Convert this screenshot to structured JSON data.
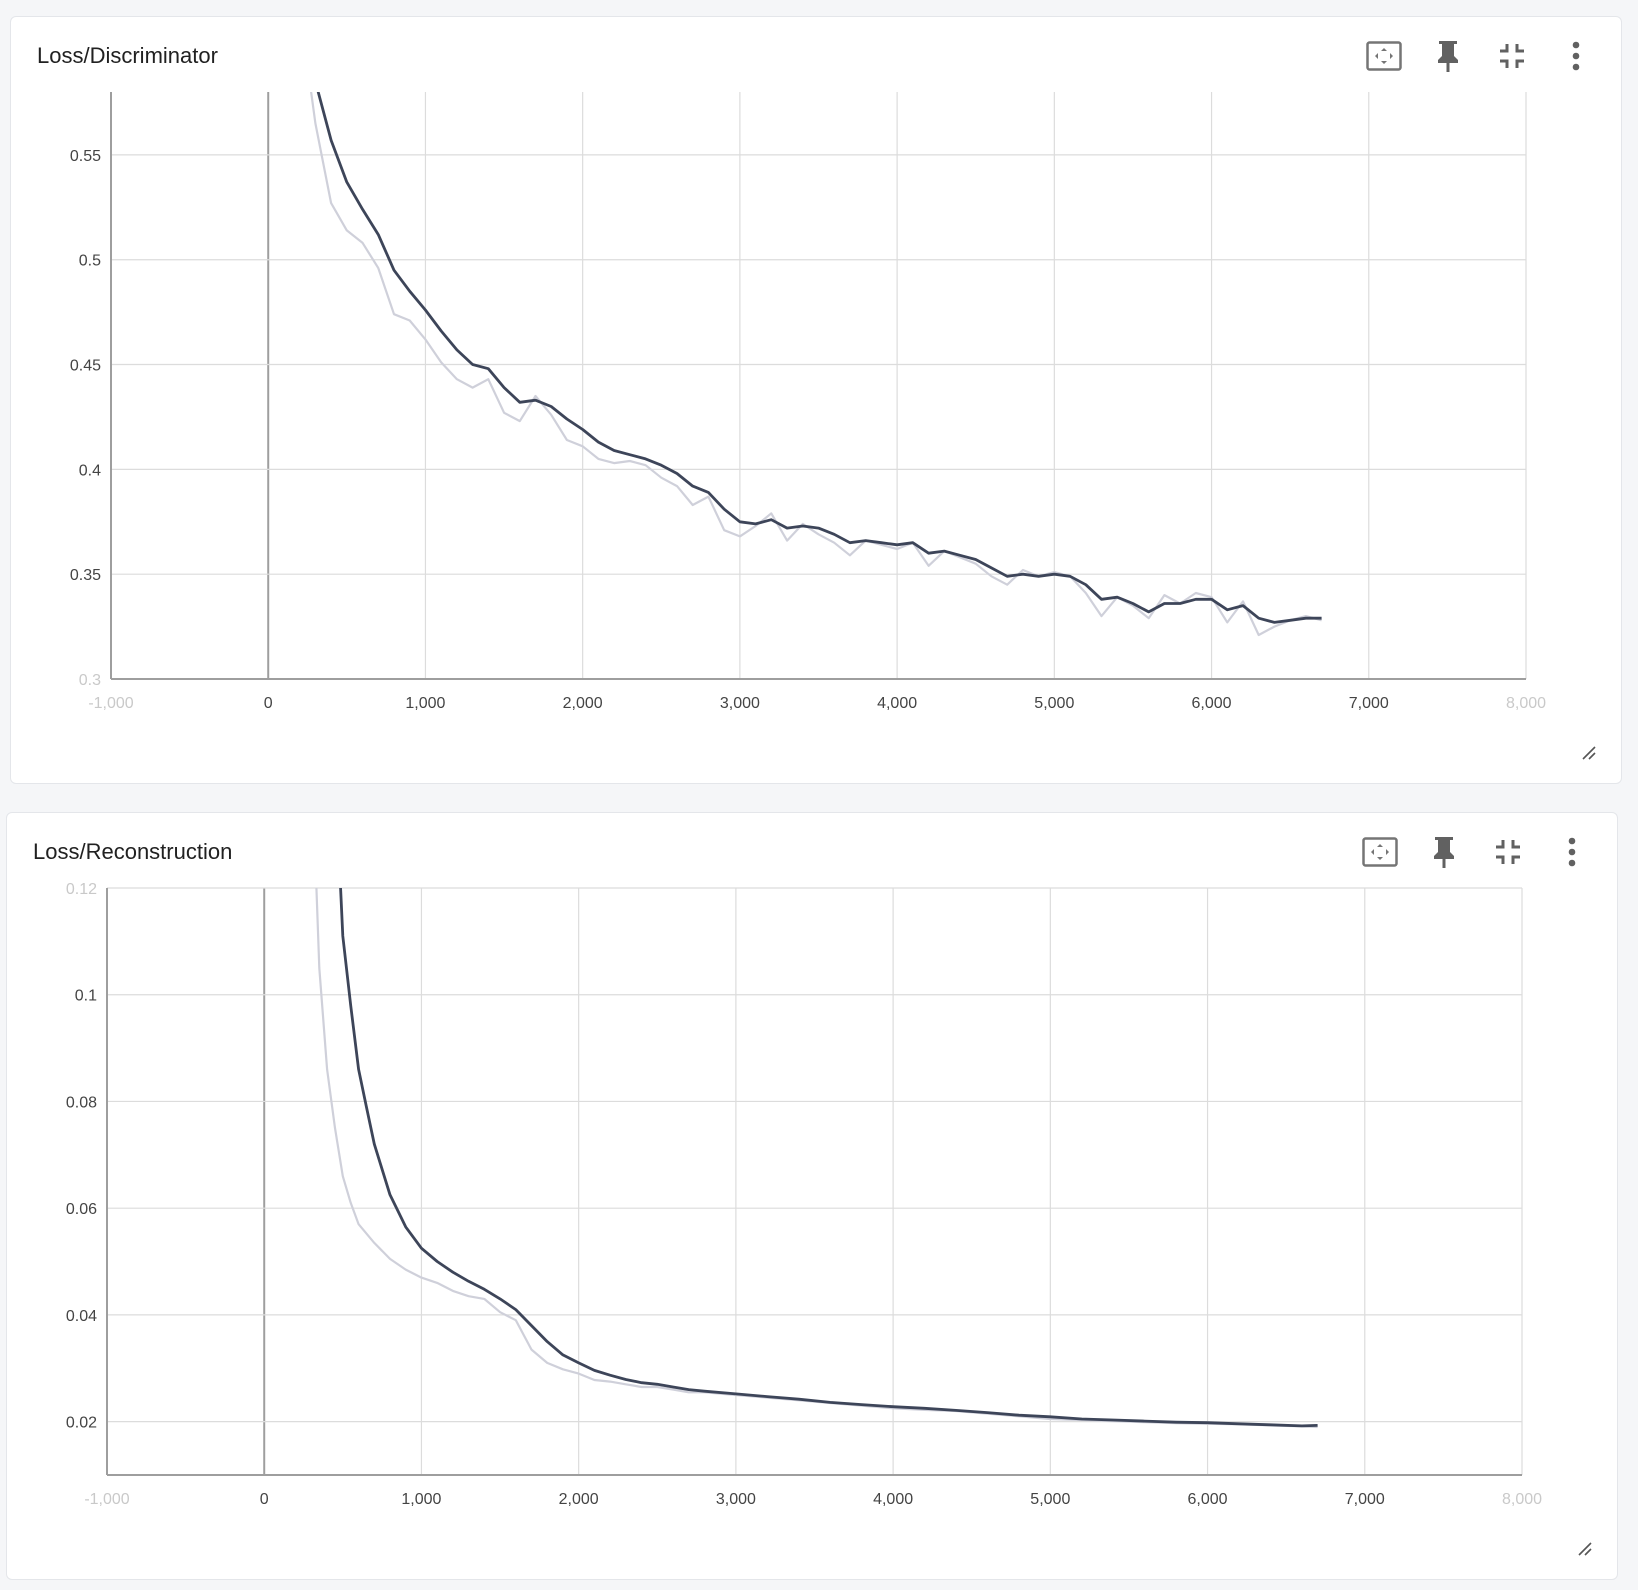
{
  "cards": [
    {
      "title": "Loss/Discriminator",
      "tools": [
        "fit-domain-icon",
        "pin-icon",
        "collapse-icon",
        "more-vert-icon"
      ]
    },
    {
      "title": "Loss/Reconstruction",
      "tools": [
        "fit-domain-icon",
        "pin-icon",
        "collapse-icon",
        "more-vert-icon"
      ]
    }
  ],
  "colors": {
    "smoothed": "#3d4559",
    "raw": "#cfd0da",
    "grid": "#dcdcdc",
    "zero": "#9e9e9e"
  },
  "chart_data": [
    {
      "type": "line",
      "title": "Loss/Discriminator",
      "xlim": [
        -1000,
        8000
      ],
      "ylim": [
        0.3,
        0.58
      ],
      "x_ticks": [
        -1000,
        0,
        1000,
        2000,
        3000,
        4000,
        5000,
        6000,
        7000,
        8000
      ],
      "x_tick_labels": [
        "-1,000",
        "0",
        "1,000",
        "2,000",
        "3,000",
        "4,000",
        "5,000",
        "6,000",
        "7,000",
        "8,000"
      ],
      "y_ticks": [
        0.3,
        0.35,
        0.4,
        0.45,
        0.5,
        0.55
      ],
      "y_tick_labels": [
        "0.3",
        "0.35",
        "0.4",
        "0.45",
        "0.5",
        "0.55"
      ],
      "grid": true,
      "series": [
        {
          "role": "raw",
          "x": [
            200,
            300,
            400,
            500,
            600,
            700,
            800,
            900,
            1000,
            1100,
            1200,
            1300,
            1400,
            1500,
            1600,
            1700,
            1800,
            1900,
            2000,
            2100,
            2200,
            2300,
            2400,
            2500,
            2600,
            2700,
            2800,
            2900,
            3000,
            3100,
            3200,
            3300,
            3400,
            3500,
            3600,
            3700,
            3800,
            3900,
            4000,
            4100,
            4200,
            4300,
            4400,
            4500,
            4600,
            4700,
            4800,
            4900,
            5000,
            5100,
            5200,
            5300,
            5400,
            5500,
            5600,
            5700,
            5800,
            5900,
            6000,
            6100,
            6200,
            6300,
            6400,
            6500,
            6600,
            6700
          ],
          "y": [
            0.62,
            0.565,
            0.527,
            0.514,
            0.508,
            0.496,
            0.474,
            0.471,
            0.462,
            0.451,
            0.443,
            0.439,
            0.443,
            0.427,
            0.423,
            0.435,
            0.426,
            0.414,
            0.411,
            0.405,
            0.403,
            0.404,
            0.402,
            0.396,
            0.392,
            0.383,
            0.387,
            0.371,
            0.368,
            0.373,
            0.379,
            0.366,
            0.374,
            0.369,
            0.365,
            0.359,
            0.366,
            0.364,
            0.362,
            0.365,
            0.354,
            0.361,
            0.358,
            0.355,
            0.349,
            0.345,
            0.352,
            0.349,
            0.351,
            0.349,
            0.341,
            0.33,
            0.339,
            0.335,
            0.329,
            0.34,
            0.336,
            0.341,
            0.339,
            0.327,
            0.337,
            0.321,
            0.325,
            0.328,
            0.33,
            0.328
          ]
        },
        {
          "role": "smoothed",
          "x": [
            200,
            300,
            400,
            500,
            600,
            700,
            800,
            900,
            1000,
            1100,
            1200,
            1300,
            1400,
            1500,
            1600,
            1700,
            1800,
            1900,
            2000,
            2100,
            2200,
            2300,
            2400,
            2500,
            2600,
            2700,
            2800,
            2900,
            3000,
            3100,
            3200,
            3300,
            3400,
            3500,
            3600,
            3700,
            3800,
            3900,
            4000,
            4100,
            4200,
            4300,
            4400,
            4500,
            4600,
            4700,
            4800,
            4900,
            5000,
            5100,
            5200,
            5300,
            5400,
            5500,
            5600,
            5700,
            5800,
            5900,
            6000,
            6100,
            6200,
            6300,
            6400,
            6500,
            6600,
            6700
          ],
          "y": [
            0.64,
            0.585,
            0.557,
            0.537,
            0.524,
            0.512,
            0.495,
            0.485,
            0.476,
            0.466,
            0.457,
            0.45,
            0.448,
            0.439,
            0.432,
            0.433,
            0.43,
            0.424,
            0.419,
            0.413,
            0.409,
            0.407,
            0.405,
            0.402,
            0.398,
            0.392,
            0.389,
            0.381,
            0.375,
            0.374,
            0.376,
            0.372,
            0.373,
            0.372,
            0.369,
            0.365,
            0.366,
            0.365,
            0.364,
            0.365,
            0.36,
            0.361,
            0.359,
            0.357,
            0.353,
            0.349,
            0.35,
            0.349,
            0.35,
            0.349,
            0.345,
            0.338,
            0.339,
            0.336,
            0.332,
            0.336,
            0.336,
            0.338,
            0.338,
            0.333,
            0.335,
            0.329,
            0.327,
            0.328,
            0.329,
            0.329
          ]
        }
      ]
    },
    {
      "type": "line",
      "title": "Loss/Reconstruction",
      "xlim": [
        -1000,
        8000
      ],
      "ylim": [
        0.01,
        0.12
      ],
      "x_ticks": [
        -1000,
        0,
        1000,
        2000,
        3000,
        4000,
        5000,
        6000,
        7000,
        8000
      ],
      "x_tick_labels": [
        "-1,000",
        "0",
        "1,000",
        "2,000",
        "3,000",
        "4,000",
        "5,000",
        "6,000",
        "7,000",
        "8,000"
      ],
      "y_ticks": [
        0.02,
        0.04,
        0.06,
        0.08,
        0.1,
        0.12
      ],
      "y_tick_labels": [
        "0.02",
        "0.04",
        "0.06",
        "0.08",
        "0.1",
        "0.12"
      ],
      "grid": true,
      "series": [
        {
          "role": "raw",
          "x": [
            320,
            350,
            400,
            450,
            500,
            550,
            600,
            700,
            800,
            900,
            1000,
            1100,
            1200,
            1300,
            1400,
            1500,
            1600,
            1700,
            1800,
            1900,
            2000,
            2100,
            2200,
            2300,
            2400,
            2500,
            2600,
            2700,
            2800,
            3000,
            3200,
            3400,
            3600,
            3800,
            4000,
            4200,
            4400,
            4600,
            4800,
            5000,
            5200,
            5400,
            5600,
            5800,
            6000,
            6200,
            6400,
            6600,
            6700
          ],
          "y": [
            0.13,
            0.105,
            0.086,
            0.075,
            0.066,
            0.061,
            0.057,
            0.0535,
            0.0505,
            0.0485,
            0.047,
            0.046,
            0.0445,
            0.0435,
            0.043,
            0.0405,
            0.039,
            0.0335,
            0.031,
            0.0298,
            0.029,
            0.0278,
            0.0275,
            0.027,
            0.0265,
            0.0265,
            0.026,
            0.0255,
            0.0255,
            0.025,
            0.0245,
            0.024,
            0.0235,
            0.023,
            0.0225,
            0.0222,
            0.022,
            0.0215,
            0.021,
            0.0205,
            0.0203,
            0.0201,
            0.0199,
            0.0197,
            0.0196,
            0.0195,
            0.0193,
            0.0191,
            0.019
          ]
        },
        {
          "role": "smoothed",
          "x": [
            470,
            500,
            550,
            600,
            650,
            700,
            800,
            850,
            900,
            1000,
            1100,
            1200,
            1300,
            1400,
            1500,
            1600,
            1700,
            1800,
            1900,
            2000,
            2100,
            2200,
            2300,
            2400,
            2500,
            2600,
            2700,
            2800,
            3000,
            3200,
            3400,
            3600,
            3800,
            4000,
            4200,
            4400,
            4600,
            4800,
            5000,
            5200,
            5400,
            5600,
            5800,
            6000,
            6200,
            6400,
            6600,
            6700
          ],
          "y": [
            0.13,
            0.111,
            0.098,
            0.086,
            0.079,
            0.072,
            0.0625,
            0.0595,
            0.0565,
            0.0525,
            0.05,
            0.048,
            0.0463,
            0.0448,
            0.043,
            0.041,
            0.038,
            0.035,
            0.0325,
            0.031,
            0.0296,
            0.0287,
            0.0279,
            0.0273,
            0.027,
            0.0265,
            0.026,
            0.0257,
            0.0252,
            0.0247,
            0.0242,
            0.0236,
            0.0232,
            0.0228,
            0.0225,
            0.0221,
            0.0217,
            0.0212,
            0.0209,
            0.0205,
            0.0203,
            0.0201,
            0.0199,
            0.0198,
            0.0196,
            0.0194,
            0.0192,
            0.0193
          ]
        }
      ]
    }
  ]
}
